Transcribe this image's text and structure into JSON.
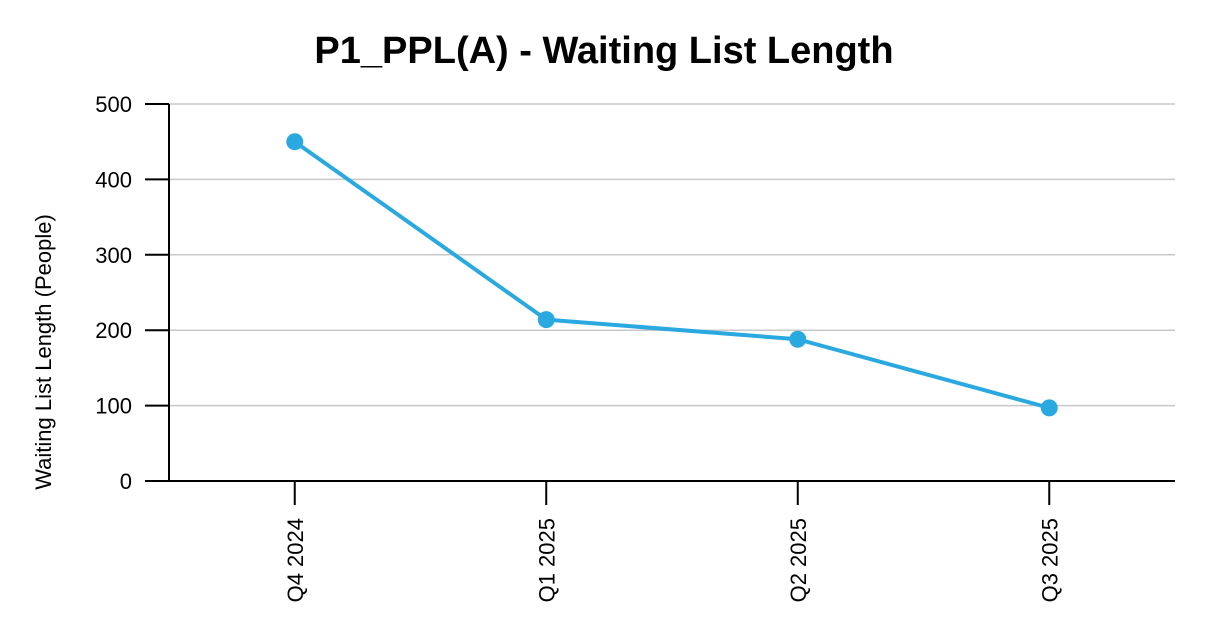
{
  "chart_data": {
    "type": "line",
    "title": "P1_PPL(A) - Waiting List Length",
    "xlabel": "",
    "ylabel": "Waiting List Length (People)",
    "categories": [
      "Q4 2024",
      "Q1 2025",
      "Q2 2025",
      "Q3 2025"
    ],
    "series": [
      {
        "values": [
          450,
          214,
          188,
          97
        ],
        "color": "#2aa9e0"
      }
    ],
    "ylim": [
      0,
      500
    ],
    "yticks": [
      0,
      100,
      200,
      300,
      400,
      500
    ],
    "grid": true,
    "legend": "none"
  }
}
